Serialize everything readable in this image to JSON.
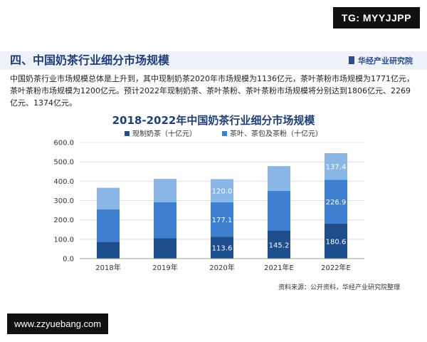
{
  "overlay": {
    "tg_badge": "TG: MYYJJPP",
    "url_badge": "www.zzyuebang.com"
  },
  "header": {
    "section_title": "四、中国奶茶行业细分市场规模",
    "org_name": "华经产业研究院"
  },
  "summary_text": "中国奶茶行业市场规模总体是上升到，其中现制奶茶2020年市场规模为1136亿元，茶叶茶粉市场规模为1771亿元，茶叶茶粉市场规模为1200亿元。预计2022年现制奶茶、茶叶茶粉、茶叶茶粉市场规模将分别达到1806亿元、2269亿元、1374亿元。",
  "source_text": "资料来源：公开资料，华经产业研究院整理",
  "colors": {
    "dark_series": "#1f4e8c",
    "mid_series": "#3f7fcf",
    "light_series": "#8ab6e6",
    "grid": "#d9d9d9",
    "axis_text": "#333333",
    "title": "#1f3f7a"
  },
  "chart_data": {
    "type": "bar",
    "stacked": true,
    "title": "2018-2022年中国奶茶行业细分市场规模",
    "categories": [
      "2018年",
      "2019年",
      "2020年",
      "2021年E",
      "2022年E"
    ],
    "series": [
      {
        "name": "现制奶茶（十亿元）",
        "values": [
          87,
          105,
          113.6,
          145.2,
          180.6
        ],
        "labels": [
          "",
          "",
          "113.6",
          "145.2",
          "180.6"
        ]
      },
      {
        "name": "茶叶、茶包及茶粉（十亿元）",
        "values": [
          167,
          187,
          177.1,
          205,
          226.9
        ],
        "labels": [
          "",
          "",
          "177.1",
          "",
          "226.9"
        ]
      },
      {
        "name": "",
        "values": [
          112,
          120,
          120.0,
          128,
          137.4
        ],
        "labels": [
          "",
          "",
          "120.0",
          "",
          "137.4"
        ]
      }
    ],
    "ylim": [
      0,
      600
    ],
    "yticks": [
      "0.0",
      "100.0",
      "200.0",
      "300.0",
      "400.0",
      "500.0",
      "600.0"
    ],
    "legend_position": "top",
    "grid": true
  }
}
